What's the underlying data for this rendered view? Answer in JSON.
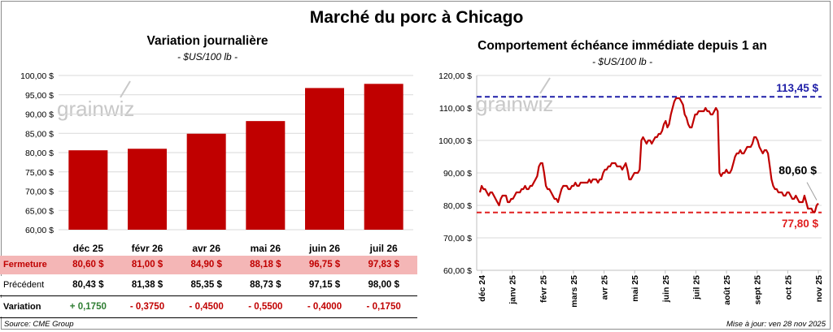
{
  "title": "Marché du porc à Chicago",
  "left": {
    "title": "Variation journalière",
    "unit": "- $US/100 lb -",
    "watermark": "grainwiz",
    "chart_data": {
      "type": "bar",
      "categories": [
        "déc 25",
        "févr 26",
        "avr 26",
        "mai 26",
        "juin 26",
        "juil 26"
      ],
      "values": [
        80.6,
        81.0,
        84.9,
        88.18,
        96.75,
        97.83
      ],
      "ylim": [
        60,
        100
      ],
      "yticks": [
        "60,00 $",
        "65,00 $",
        "70,00 $",
        "75,00 $",
        "80,00 $",
        "85,00 $",
        "90,00 $",
        "95,00 $",
        "100,00 $"
      ],
      "bar_color": "#c00000",
      "grid": true
    },
    "table": {
      "rows": [
        {
          "label": "Fermeture",
          "cells": [
            "80,60  $",
            "81,00  $",
            "84,90  $",
            "88,18  $",
            "96,75  $",
            "97,83  $"
          ],
          "color": "#c00000",
          "bg": "#f4b6b6"
        },
        {
          "label": "Précédent",
          "cells": [
            "80,43  $",
            "81,38  $",
            "85,35  $",
            "88,73  $",
            "97,15  $",
            "98,00  $"
          ],
          "color": "#000000",
          "bg": "#ffffff"
        },
        {
          "label": "Variation",
          "cells": [
            "+ 0,1750",
            "- 0,3750",
            "- 0,4500",
            "- 0,5500",
            "- 0,4000",
            "- 0,1750"
          ],
          "colors": [
            "#2e7d32",
            "#c00000",
            "#c00000",
            "#c00000",
            "#c00000",
            "#c00000"
          ],
          "bg": "#ffffff"
        }
      ]
    },
    "source": "Source: CME Group"
  },
  "right": {
    "title": "Comportement  échéance immédiate depuis 1 an",
    "unit": "- $US/100 lb -",
    "watermark": "grainwiz",
    "chart_data": {
      "type": "line",
      "ylim": [
        60,
        120
      ],
      "yticks": [
        "60,00 $",
        "70,00 $",
        "80,00 $",
        "90,00 $",
        "100,00 $",
        "110,00 $",
        "120,00 $"
      ],
      "xticks": [
        "déc 24",
        "janv 25",
        "févr 25",
        "mars 25",
        "avr 25",
        "mai 25",
        "juin 25",
        "juil 25",
        "août 25",
        "sept 25",
        "oct 25",
        "nov 25"
      ],
      "grid": true,
      "line_color": "#c00000",
      "series": [
        {
          "values": [
            84,
            86,
            85,
            85,
            84,
            83,
            84,
            84,
            83,
            82,
            81,
            80,
            82,
            83,
            83,
            83,
            81,
            81,
            82,
            82,
            83,
            84,
            84,
            84,
            85,
            85,
            86,
            85,
            85,
            86,
            86,
            87,
            88,
            89,
            92,
            93,
            93,
            90,
            86,
            85,
            85,
            84,
            83,
            82,
            82,
            81,
            83,
            85,
            86,
            86,
            86,
            85,
            85,
            86,
            86,
            87,
            86,
            86,
            87,
            87,
            87,
            87,
            87,
            88,
            87,
            88,
            88,
            88,
            87,
            88,
            88,
            90,
            91,
            91,
            92,
            92,
            93,
            93,
            93,
            92,
            92,
            92,
            91,
            92,
            93,
            91,
            88,
            88,
            89,
            90,
            90,
            90,
            91,
            100,
            101,
            100,
            99,
            100,
            100,
            99,
            100,
            101,
            101,
            102,
            102,
            103,
            105,
            106,
            104,
            105,
            108,
            110,
            112,
            113,
            113,
            113,
            112,
            111,
            108,
            107,
            105,
            104,
            104,
            106,
            108,
            108,
            109,
            109,
            109,
            109,
            110,
            109,
            109,
            108,
            108,
            109,
            110,
            109,
            90,
            89,
            90,
            90,
            91,
            90,
            90,
            91,
            93,
            95,
            96,
            96,
            97,
            96,
            96,
            97,
            98,
            98,
            98,
            99,
            101,
            101,
            100,
            98,
            97,
            96,
            97,
            97,
            96,
            92,
            88,
            86,
            85,
            85,
            84,
            84,
            84,
            83,
            83,
            84,
            84,
            83,
            82,
            82,
            83,
            82,
            81,
            81,
            81,
            83,
            81,
            79,
            79,
            79,
            78,
            78,
            80,
            80.6
          ]
        }
      ],
      "ref_lines": [
        {
          "value": 113.45,
          "label": "113,45 $",
          "color": "#1f1fa8"
        },
        {
          "value": 77.8,
          "label": "77,80 $",
          "color": "#e02020"
        }
      ],
      "last_label": "80,60 $"
    },
    "updated": "Mise à jour: ven 28 nov 2025"
  }
}
